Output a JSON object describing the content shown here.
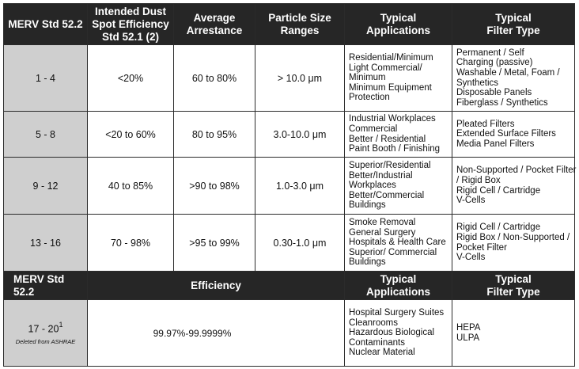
{
  "header": {
    "col1": "MERV Std 52.2",
    "col2": [
      "Intended Dust",
      "Spot Efficiency",
      "Std 52.1 (2)"
    ],
    "col3": [
      "Average",
      "Arrestance"
    ],
    "col4": [
      "Particle Size",
      "Ranges"
    ],
    "col5": [
      "Typical",
      "Applications"
    ],
    "col6": [
      "Typical",
      "Filter Type"
    ]
  },
  "rows": [
    {
      "merv": "1 - 4",
      "dust_spot": "<20%",
      "arrestance": "60 to 80%",
      "particle_size": "> 10.0 μm",
      "applications": [
        "Residential/Minimum",
        "Light Commercial/",
        "Minimum",
        "Minimum Equipment",
        "Protection"
      ],
      "filter_types": [
        "Permanent / Self",
        "Charging (passive)",
        "Washable / Metal, Foam /",
        "Synthetics",
        "Disposable Panels",
        "Fiberglass / Synthetics"
      ]
    },
    {
      "merv": "5 - 8",
      "dust_spot": "<20 to 60%",
      "arrestance": "80 to 95%",
      "particle_size": "3.0-10.0 μm",
      "applications": [
        "Industrial Workplaces",
        "Commercial",
        "Better / Residential",
        "Paint Booth / Finishing"
      ],
      "filter_types": [
        "Pleated Filters",
        "Extended Surface Filters",
        "Media Panel Filters"
      ]
    },
    {
      "merv": "9 - 12",
      "dust_spot": "40 to 85%",
      "arrestance": ">90 to 98%",
      "particle_size": "1.0-3.0 μm",
      "applications": [
        "Superior/Residential",
        "Better/Industrial",
        "Workplaces",
        "Better/Commercial",
        "Buildings"
      ],
      "filter_types": [
        "Non-Supported / Pocket Filter",
        "/ Rigid Box",
        "Rigid Cell / Cartridge",
        "V-Cells"
      ]
    },
    {
      "merv": "13 - 16",
      "dust_spot": "70 - 98%",
      "arrestance": ">95 to 99%",
      "particle_size": "0.30-1.0 μm",
      "applications": [
        "Smoke Removal",
        "General Surgery",
        "Hospitals & Health Care",
        "Superior/ Commercial",
        "Buildings"
      ],
      "filter_types": [
        "Rigid Cell / Cartridge",
        "Rigid Box / Non-Supported /",
        "Pocket Filter",
        "V-Cells"
      ]
    }
  ],
  "header2": {
    "col1": "MERV Std 52.2",
    "efficiency": "Efficiency",
    "col5": [
      "Typical",
      "Applications"
    ],
    "col6": [
      "Typical",
      "Filter Type"
    ]
  },
  "last_row": {
    "merv": "17 - 20",
    "footnote_mark": "1",
    "note": "Deleted from ASHRAE",
    "efficiency": "99.97%-99.9999%",
    "applications": [
      "Hospital Surgery Suites",
      "Cleanrooms",
      "Hazardous Biological",
      "Contaminants",
      "Nuclear Material"
    ],
    "filter_types": [
      "HEPA",
      "ULPA"
    ]
  }
}
